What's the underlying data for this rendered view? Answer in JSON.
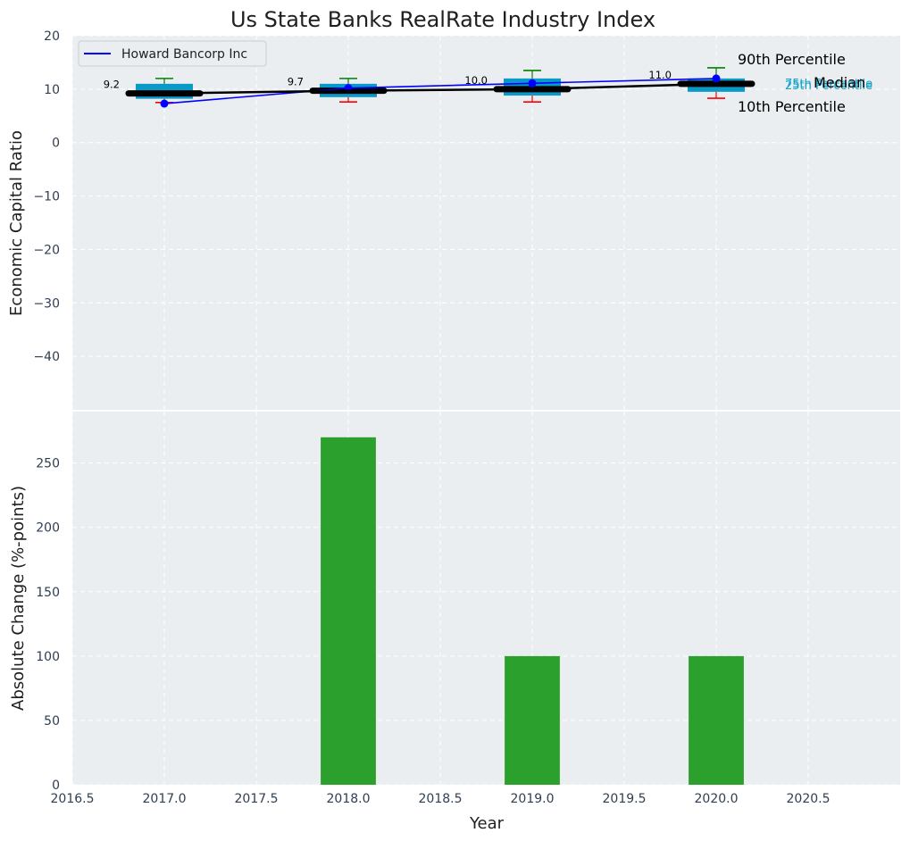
{
  "chart_data": [
    {
      "type": "box",
      "title": "Us State Banks RealRate Industry Index",
      "ylabel": "Economic Capital Ratio",
      "xlabel": "",
      "xlim": [
        2016.5,
        2021.0
      ],
      "ylim": [
        -50,
        20
      ],
      "yticks": [
        20,
        10,
        0,
        -10,
        -20,
        -30,
        -40
      ],
      "ytick_labels": [
        "20",
        "10",
        "0",
        "−10",
        "−20",
        "−30",
        "−40"
      ],
      "grid": true,
      "legend": {
        "placement": "top-left",
        "entries": [
          {
            "label": "Howard Bancorp Inc",
            "color": "#0000ff"
          }
        ]
      },
      "boxes": [
        {
          "x": 2017,
          "p10": 7.5,
          "p25": 8.2,
          "median": 9.2,
          "p75": 11.0,
          "p90": 12.0,
          "label": "9.2"
        },
        {
          "x": 2018,
          "p10": 7.6,
          "p25": 8.5,
          "median": 9.7,
          "p75": 11.0,
          "p90": 12.0,
          "label": "9.7"
        },
        {
          "x": 2019,
          "p10": 7.6,
          "p25": 8.8,
          "median": 10.0,
          "p75": 12.0,
          "p90": 13.5,
          "label": "10.0"
        },
        {
          "x": 2020,
          "p10": 8.3,
          "p25": 9.5,
          "median": 11.0,
          "p75": 12.0,
          "p90": 14.0,
          "label": "11.0"
        }
      ],
      "series": [
        {
          "name": "Howard Bancorp Inc",
          "color": "#0000ff",
          "x": [
            2017,
            2018,
            2019,
            2020
          ],
          "values": [
            7.3,
            10.2,
            11.1,
            12.0
          ]
        },
        {
          "name": "Median",
          "color": "#000000",
          "x": [
            2017,
            2018,
            2019,
            2020
          ],
          "values": [
            9.2,
            9.7,
            10.0,
            11.0
          ]
        }
      ],
      "annotations": {
        "p90": "90th Percentile",
        "median": "Median",
        "p10": "10th Percentile",
        "p75": "75th Percentile",
        "p25": "25th Percentile"
      },
      "colors": {
        "box": "#0a9ac9",
        "whisker_top": "#008000",
        "whisker_bottom": "#ff0000",
        "median": "#000000",
        "company": "#0000ff",
        "background": "#eaeef0",
        "grid": "#ffffff"
      }
    },
    {
      "type": "bar",
      "xlabel": "Year",
      "ylabel": "Absolute Change (%-points)",
      "xlim": [
        2016.5,
        2021.0
      ],
      "ylim": [
        0,
        290
      ],
      "yticks": [
        0,
        50,
        100,
        150,
        200,
        250
      ],
      "xticks": [
        2016.5,
        2017.0,
        2017.5,
        2018.0,
        2018.5,
        2019.0,
        2019.5,
        2020.0,
        2020.5
      ],
      "xtick_labels": [
        "2016.5",
        "2017.0",
        "2017.5",
        "2018.0",
        "2018.5",
        "2019.0",
        "2019.5",
        "2020.0",
        "2020.5"
      ],
      "x": [
        2018,
        2019,
        2020
      ],
      "values": [
        270,
        100,
        100
      ],
      "bar_width": 0.3,
      "grid": true,
      "colors": {
        "bar": "#2ca02c",
        "background": "#eaeef0",
        "grid": "#ffffff"
      }
    }
  ]
}
